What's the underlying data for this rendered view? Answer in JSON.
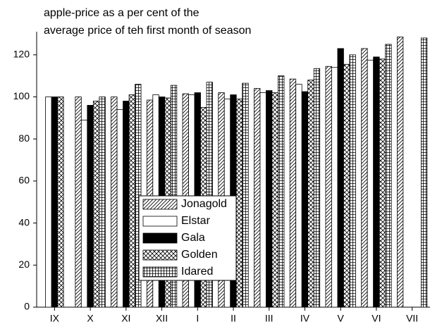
{
  "chart_data": {
    "type": "bar",
    "title": [
      "apple-price as a per cent of the",
      "average price of teh first month of season"
    ],
    "categories": [
      "IX",
      "X",
      "XI",
      "XII",
      "I",
      "II",
      "III",
      "IV",
      "V",
      "VI",
      "VII"
    ],
    "series": [
      {
        "name": "Jonagold",
        "color": "#000000",
        "pattern": "diagonal",
        "values": [
          null,
          100,
          100,
          98.5,
          101.5,
          102,
          104,
          108.5,
          114.5,
          123,
          128.5
        ]
      },
      {
        "name": "Elstar",
        "color": "#000000",
        "pattern": "none",
        "values": [
          100,
          89,
          94,
          101,
          101,
          99,
          102,
          106,
          114,
          117.5,
          null
        ]
      },
      {
        "name": "Gala",
        "color": "#000000",
        "pattern": "solid",
        "values": [
          100,
          96,
          98,
          100,
          102,
          101,
          103,
          102.5,
          123,
          119,
          null
        ]
      },
      {
        "name": "Golden",
        "color": "#000000",
        "pattern": "crosshatch",
        "values": [
          100,
          98,
          101,
          99.5,
          95,
          99,
          102,
          108,
          115.5,
          118,
          null
        ]
      },
      {
        "name": "Idared",
        "color": "#000000",
        "pattern": "grid",
        "values": [
          null,
          100,
          106,
          105.5,
          107,
          106.5,
          110,
          113.5,
          120,
          125,
          128
        ]
      }
    ],
    "ylim": [
      0,
      131
    ],
    "yticks": [
      0,
      20,
      40,
      60,
      80,
      100,
      120
    ],
    "grid": false,
    "legend": "center"
  }
}
